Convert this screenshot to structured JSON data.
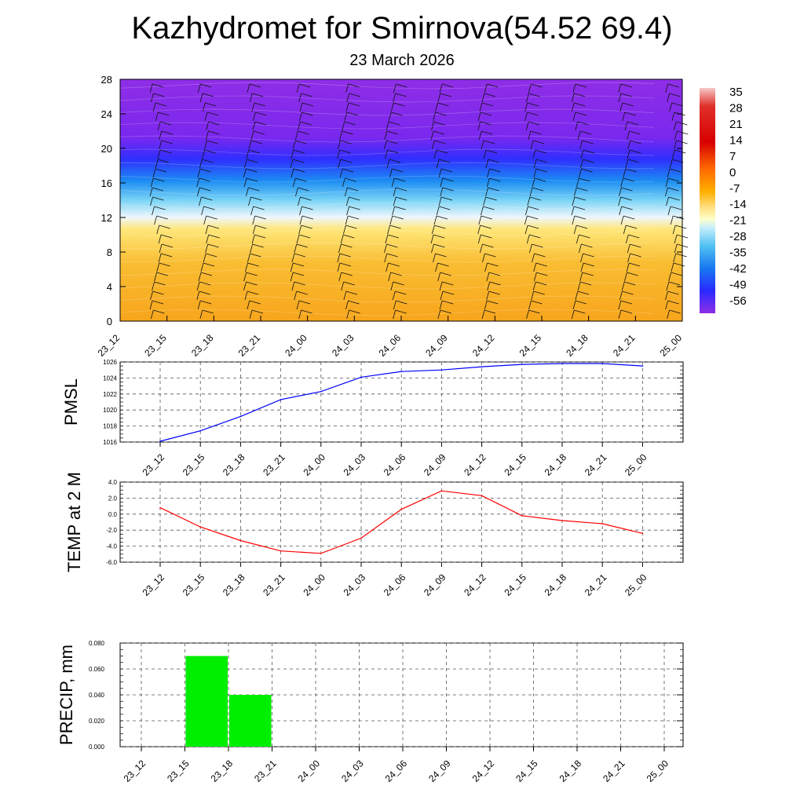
{
  "title": "Kazhydromet for Smirnova(54.52 69.4)",
  "subtitle": "23 March 2026",
  "chart_data": [
    {
      "type": "heatmap",
      "name": "cross-section",
      "x_labels": [
        "23_12",
        "23_15",
        "23_18",
        "23_21",
        "24_00",
        "24_03",
        "24_06",
        "24_09",
        "24_12",
        "24_15",
        "24_18",
        "24_21",
        "25_00"
      ],
      "y_ticks": [
        0,
        4,
        8,
        12,
        16,
        20,
        24,
        28
      ],
      "ylim": [
        0,
        28
      ],
      "colorbar": {
        "labels": [
          "35",
          "28",
          "21",
          "14",
          "7",
          "0",
          "-7",
          "-14",
          "-21",
          "-28",
          "-35",
          "-42",
          "-49",
          "-56"
        ],
        "range": [
          -60,
          38
        ]
      },
      "colors": {
        "warm": "#f7a51c",
        "cold": "#8a2be2"
      }
    },
    {
      "type": "line",
      "name": "pmsl",
      "ylabel": "PMSL",
      "x_labels": [
        "23_12",
        "23_15",
        "23_18",
        "23_21",
        "24_00",
        "24_03",
        "24_06",
        "24_09",
        "24_12",
        "24_15",
        "24_18",
        "24_21",
        "25_00"
      ],
      "y_ticks": [
        "1016",
        "1018",
        "1020",
        "1022",
        "1024",
        "1026"
      ],
      "ylim": [
        1016,
        1026
      ],
      "values": [
        1016.1,
        1017.4,
        1019.2,
        1021.3,
        1022.3,
        1024.1,
        1024.8,
        1025.0,
        1025.4,
        1025.7,
        1025.8,
        1025.8,
        1025.5
      ],
      "color": "#0000ff"
    },
    {
      "type": "line",
      "name": "temp2m",
      "ylabel": "TEMP at 2 M",
      "x_labels": [
        "23_12",
        "23_15",
        "23_18",
        "23_21",
        "24_00",
        "24_03",
        "24_06",
        "24_09",
        "24_12",
        "24_15",
        "24_18",
        "24_21",
        "25_00"
      ],
      "y_ticks": [
        "-6.0",
        "-4.0",
        "-2.0",
        "0.0",
        "2.0",
        "4.0"
      ],
      "ylim": [
        -6,
        4
      ],
      "values": [
        0.8,
        -1.6,
        -3.3,
        -4.6,
        -4.9,
        -3.0,
        0.6,
        2.9,
        2.3,
        -0.2,
        -0.8,
        -1.2,
        -2.4
      ],
      "color": "#ff0000"
    },
    {
      "type": "bar",
      "name": "precip",
      "ylabel": "PRECIP, mm",
      "x_labels": [
        "23_12",
        "23_15",
        "23_18",
        "23_21",
        "24_00",
        "24_03",
        "24_06",
        "24_09",
        "24_12",
        "24_15",
        "24_18",
        "24_21",
        "25_00"
      ],
      "y_ticks": [
        "0.000",
        "0.020",
        "0.040",
        "0.060",
        "0.080"
      ],
      "ylim": [
        0,
        0.08
      ],
      "values": [
        0,
        0.07,
        0.04,
        0,
        0,
        0,
        0,
        0,
        0,
        0,
        0,
        0,
        0
      ],
      "color": "#00ee00"
    }
  ]
}
